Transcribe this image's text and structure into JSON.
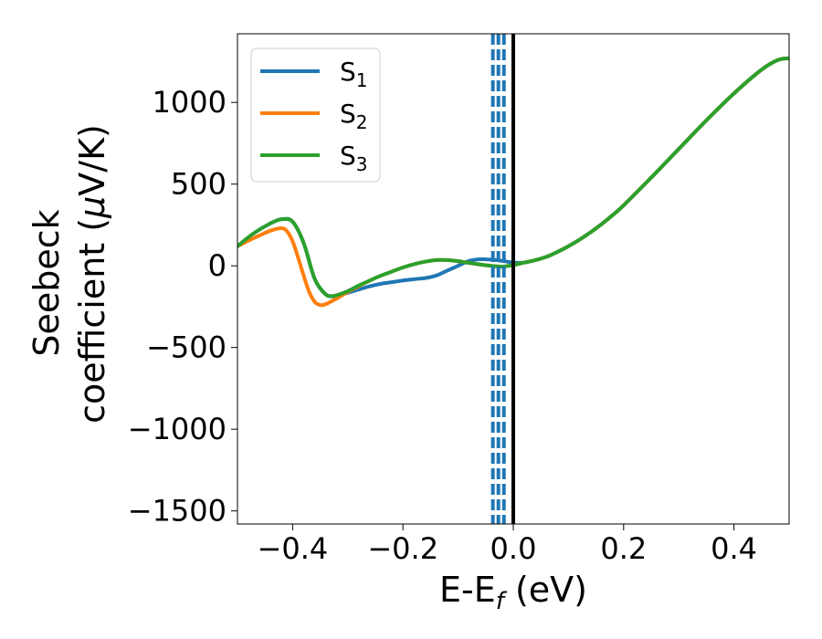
{
  "chart_data": {
    "type": "line",
    "xlabel_main": "E-E",
    "xlabel_sub": "f",
    "xlabel_unit": " (eV)",
    "ylabel_line1": "Seebeck",
    "ylabel_line2_prefix": "coefficient  (",
    "ylabel_mu": "μ",
    "ylabel_line2_suffix": "V/K)",
    "xlim": [
      -0.5,
      0.5
    ],
    "ylim": [
      -1580,
      1420
    ],
    "xticks": [
      -0.4,
      -0.2,
      0.0,
      0.2,
      0.4
    ],
    "xtick_labels": [
      "−0.4",
      "−0.2",
      "0.0",
      "0.2",
      "0.4"
    ],
    "yticks": [
      -1500,
      -1000,
      -500,
      0,
      500,
      1000
    ],
    "ytick_labels": [
      "−1500",
      "−1000",
      "−500",
      "0",
      "500",
      "1000"
    ],
    "grid": false,
    "legend_position": "top-left",
    "fermi_line_x": 0.0,
    "fermi_line_color": "#000000",
    "dashed_lines_x": [
      -0.037,
      -0.027,
      -0.017
    ],
    "dashed_lines_color": "#1f77b4",
    "series": [
      {
        "name": "S",
        "subscript": "1",
        "color": "#1f77b4",
        "x": [
          -0.5,
          -0.47,
          -0.44,
          -0.42,
          -0.4,
          -0.38,
          -0.36,
          -0.34,
          -0.32,
          -0.3,
          -0.28,
          -0.26,
          -0.24,
          -0.22,
          -0.2,
          -0.18,
          -0.16,
          -0.14,
          -0.12,
          -0.1,
          -0.08,
          -0.06,
          -0.04,
          -0.02,
          0.0,
          0.02,
          0.04,
          0.06,
          0.08,
          0.1,
          0.12,
          0.14,
          0.16,
          0.18,
          0.2,
          0.25,
          0.3,
          0.35,
          0.4,
          0.45,
          0.48,
          0.5
        ],
        "y": [
          120,
          200,
          260,
          285,
          270,
          140,
          -80,
          -175,
          -185,
          -165,
          -145,
          -125,
          -110,
          -100,
          -90,
          -82,
          -75,
          -60,
          -30,
          0,
          30,
          40,
          38,
          30,
          20,
          20,
          35,
          55,
          85,
          120,
          160,
          205,
          255,
          310,
          370,
          540,
          715,
          890,
          1055,
          1200,
          1260,
          1270
        ]
      },
      {
        "name": "S",
        "subscript": "2",
        "color": "#ff7f0e",
        "x": [
          -0.5,
          -0.47,
          -0.44,
          -0.42,
          -0.41,
          -0.4,
          -0.39,
          -0.38,
          -0.37,
          -0.36,
          -0.35,
          -0.34,
          -0.32,
          -0.3,
          -0.28,
          -0.26,
          -0.24,
          -0.22,
          -0.2,
          -0.18,
          -0.16,
          -0.14,
          -0.12,
          -0.1,
          -0.08,
          -0.06,
          -0.04,
          -0.02,
          0.0,
          0.02,
          0.04,
          0.06,
          0.08,
          0.1,
          0.12,
          0.14,
          0.16,
          0.18,
          0.2,
          0.25,
          0.3,
          0.35,
          0.4,
          0.45,
          0.48,
          0.5
        ],
        "y": [
          120,
          170,
          215,
          230,
          210,
          150,
          50,
          -60,
          -160,
          -220,
          -240,
          -235,
          -200,
          -160,
          -125,
          -90,
          -60,
          -35,
          -10,
          10,
          25,
          35,
          35,
          28,
          18,
          8,
          0,
          -5,
          5,
          20,
          35,
          55,
          85,
          120,
          160,
          205,
          255,
          310,
          370,
          540,
          715,
          890,
          1055,
          1200,
          1260,
          1270
        ]
      },
      {
        "name": "S",
        "subscript": "3",
        "color": "#2ca02c",
        "x": [
          -0.5,
          -0.47,
          -0.44,
          -0.42,
          -0.4,
          -0.38,
          -0.36,
          -0.34,
          -0.33,
          -0.32,
          -0.3,
          -0.28,
          -0.26,
          -0.24,
          -0.22,
          -0.2,
          -0.18,
          -0.16,
          -0.14,
          -0.12,
          -0.1,
          -0.08,
          -0.06,
          -0.04,
          -0.02,
          0.0,
          0.02,
          0.04,
          0.06,
          0.08,
          0.1,
          0.12,
          0.14,
          0.16,
          0.18,
          0.2,
          0.25,
          0.3,
          0.35,
          0.4,
          0.45,
          0.48,
          0.5
        ],
        "y": [
          120,
          200,
          260,
          285,
          270,
          140,
          -80,
          -175,
          -185,
          -180,
          -155,
          -120,
          -90,
          -60,
          -35,
          -10,
          10,
          25,
          35,
          35,
          28,
          18,
          8,
          0,
          -5,
          5,
          20,
          35,
          55,
          85,
          120,
          160,
          205,
          255,
          310,
          370,
          540,
          715,
          890,
          1055,
          1200,
          1260,
          1270
        ]
      }
    ]
  }
}
